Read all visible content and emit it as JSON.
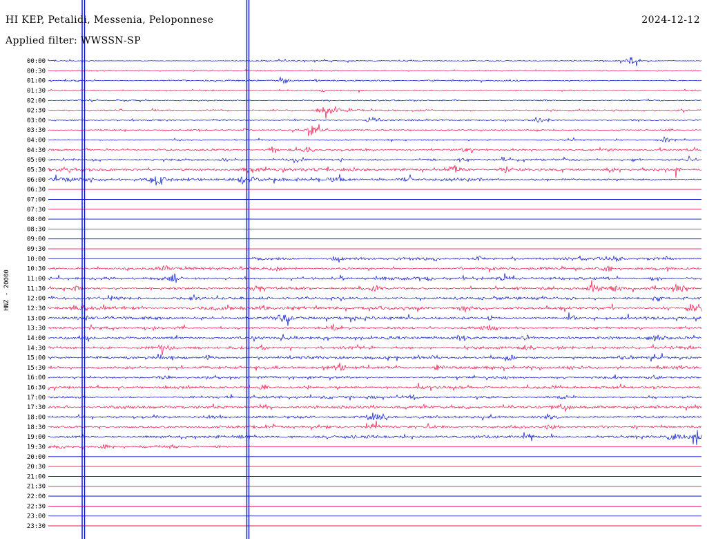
{
  "chart_data": {
    "type": "line",
    "title": "HI KEP, Petalidi, Messenia, Peloponnese",
    "subtitle": "Applied filter: WWSSN-SP",
    "date": "2024-12-12",
    "ylabel": "HNZ - 20000",
    "description": "24-hour helicorder seismogram, one row per 30 minutes, rows alternate blue/red; amplitudes in pixels, event positions as fraction of row width",
    "colors": {
      "blue": "#0011cc",
      "red": "#ee1144",
      "text": "#000000",
      "background": "#ffffff"
    },
    "vertical_event_lines_x": [
      119,
      122.5,
      357.5,
      360.5
    ],
    "rows": [
      {
        "t": "00:00",
        "c": "blue",
        "seg": [
          [
            0,
            1,
            0.9
          ]
        ],
        "ev": [
          [
            0.893,
            5,
            7
          ],
          [
            0.55,
            1.5,
            4
          ]
        ]
      },
      {
        "t": "00:30",
        "c": "red",
        "seg": [
          [
            0,
            1,
            0.85
          ]
        ],
        "ev": [
          [
            0.62,
            1.3,
            3
          ]
        ]
      },
      {
        "t": "01:00",
        "c": "blue",
        "seg": [
          [
            0,
            1,
            0.9
          ]
        ],
        "ev": [
          [
            0.363,
            5.5,
            5
          ],
          [
            0.41,
            2,
            4
          ]
        ]
      },
      {
        "t": "01:30",
        "c": "red",
        "seg": [
          [
            0,
            1,
            0.85
          ]
        ],
        "ev": [
          [
            0.42,
            1.5,
            3
          ]
        ]
      },
      {
        "t": "02:00",
        "c": "blue",
        "seg": [
          [
            0,
            1,
            0.9
          ]
        ],
        "ev": [
          [
            0.76,
            1.3,
            3
          ]
        ]
      },
      {
        "t": "02:30",
        "c": "red",
        "seg": [
          [
            0,
            1,
            1.0
          ]
        ],
        "ev": [
          [
            0.428,
            8,
            9
          ],
          [
            0.462,
            2.5,
            5
          ]
        ]
      },
      {
        "t": "03:00",
        "c": "blue",
        "seg": [
          [
            0,
            1,
            0.95
          ]
        ],
        "ev": [
          [
            0.497,
            6,
            6
          ],
          [
            0.748,
            4,
            5
          ]
        ]
      },
      {
        "t": "03:30",
        "c": "red",
        "seg": [
          [
            0,
            1,
            1.0
          ]
        ],
        "ev": [
          [
            0.407,
            6.5,
            7
          ],
          [
            0.95,
            3,
            5
          ],
          [
            0.3,
            1.5,
            4
          ]
        ]
      },
      {
        "t": "04:00",
        "c": "blue",
        "seg": [
          [
            0,
            1,
            0.95
          ]
        ],
        "ev": [
          [
            0.946,
            5.5,
            7
          ],
          [
            0.2,
            1.5,
            4
          ]
        ]
      },
      {
        "t": "04:30",
        "c": "red",
        "seg": [
          [
            0,
            1,
            1.3
          ]
        ],
        "ev": [
          [
            0.344,
            5,
            6
          ],
          [
            0.4,
            5.5,
            6
          ],
          [
            0.64,
            3.5,
            6
          ],
          [
            0.06,
            2,
            4
          ],
          [
            0.86,
            2,
            4
          ]
        ]
      },
      {
        "t": "05:00",
        "c": "blue",
        "seg": [
          [
            0,
            1,
            1.5
          ]
        ],
        "ev": [
          [
            0.27,
            2.5,
            5
          ],
          [
            0.45,
            2.5,
            5
          ],
          [
            0.63,
            3,
            5
          ],
          [
            0.9,
            2.5,
            5
          ],
          [
            0.98,
            3,
            4
          ]
        ]
      },
      {
        "t": "05:30",
        "c": "red",
        "seg": [
          [
            0,
            1,
            2.2
          ]
        ],
        "ev": [
          [
            0.03,
            3,
            6
          ],
          [
            0.31,
            4,
            8
          ],
          [
            0.62,
            5,
            8
          ],
          [
            0.7,
            4,
            6
          ],
          [
            0.86,
            3.5,
            6
          ],
          [
            0.96,
            4,
            6
          ]
        ]
      },
      {
        "t": "06:00",
        "c": "blue",
        "seg": [
          [
            0,
            0.67,
            2.8
          ],
          [
            0.67,
            1,
            1.2
          ]
        ],
        "ev": [
          [
            0.169,
            7,
            10
          ],
          [
            0.3,
            4,
            8
          ],
          [
            0.44,
            4,
            6
          ],
          [
            0.55,
            3.5,
            6
          ]
        ]
      },
      {
        "t": "06:30",
        "c": "red",
        "seg": [],
        "ev": []
      },
      {
        "t": "07:00",
        "c": "blue",
        "seg": [],
        "ev": []
      },
      {
        "t": "07:30",
        "c": "red",
        "seg": [],
        "ev": []
      },
      {
        "t": "08:00",
        "c": "blue",
        "seg": [],
        "ev": []
      },
      {
        "t": "08:30",
        "c": "red",
        "seg": [],
        "ev": []
      },
      {
        "t": "09:00",
        "c": "blue",
        "seg": [],
        "ev": []
      },
      {
        "t": "09:30",
        "c": "red",
        "seg": [],
        "ev": []
      },
      {
        "t": "10:00",
        "c": "blue",
        "seg": [
          [
            0.312,
            1,
            1.9
          ]
        ],
        "ev": [
          [
            0.44,
            3,
            5
          ],
          [
            0.59,
            3.5,
            5
          ],
          [
            0.66,
            3,
            4
          ],
          [
            0.87,
            4,
            6
          ],
          [
            0.95,
            2.5,
            4
          ]
        ]
      },
      {
        "t": "10:30",
        "c": "red",
        "seg": [
          [
            0,
            1,
            1.9
          ]
        ],
        "ev": [
          [
            0.177,
            4.5,
            6
          ],
          [
            0.35,
            2.5,
            4
          ],
          [
            0.63,
            2.5,
            4
          ],
          [
            0.856,
            4.5,
            6
          ],
          [
            0.95,
            2.5,
            4
          ]
        ]
      },
      {
        "t": "11:00",
        "c": "blue",
        "seg": [
          [
            0,
            1,
            1.9
          ]
        ],
        "ev": [
          [
            0.185,
            5,
            6
          ],
          [
            0.45,
            2.5,
            4
          ],
          [
            0.58,
            3,
            5
          ],
          [
            0.7,
            3.5,
            5
          ],
          [
            0.93,
            3,
            5
          ]
        ]
      },
      {
        "t": "11:30",
        "c": "red",
        "seg": [
          [
            0,
            1,
            2.0
          ]
        ],
        "ev": [
          [
            0.04,
            2.5,
            4
          ],
          [
            0.32,
            5,
            6
          ],
          [
            0.5,
            3,
            5
          ],
          [
            0.72,
            3,
            5
          ],
          [
            0.835,
            5,
            7
          ],
          [
            0.868,
            4,
            5
          ],
          [
            0.968,
            4.5,
            5
          ]
        ]
      },
      {
        "t": "12:00",
        "c": "blue",
        "seg": [
          [
            0,
            1,
            1.9
          ]
        ],
        "ev": [
          [
            0.1,
            2.5,
            4
          ],
          [
            0.33,
            2.5,
            4
          ],
          [
            0.62,
            2.5,
            4
          ],
          [
            0.93,
            4.5,
            6
          ]
        ]
      },
      {
        "t": "12:30",
        "c": "red",
        "seg": [
          [
            0,
            1,
            2.4
          ]
        ],
        "ev": [
          [
            0.045,
            6,
            8
          ],
          [
            0.33,
            3.5,
            5
          ],
          [
            0.64,
            4,
            6
          ],
          [
            0.86,
            3,
            5
          ],
          [
            0.985,
            6,
            6
          ]
        ]
      },
      {
        "t": "13:00",
        "c": "blue",
        "seg": [
          [
            0,
            1,
            2.0
          ]
        ],
        "ev": [
          [
            0.055,
            3,
            5
          ],
          [
            0.36,
            5.5,
            7
          ],
          [
            0.68,
            3.5,
            5
          ],
          [
            0.803,
            4.5,
            6
          ]
        ]
      },
      {
        "t": "13:30",
        "c": "red",
        "seg": [
          [
            0,
            1,
            2.0
          ]
        ],
        "ev": [
          [
            0.437,
            5,
            6
          ],
          [
            0.677,
            4.5,
            6
          ],
          [
            0.2,
            2.5,
            4
          ],
          [
            0.9,
            2.5,
            4
          ]
        ]
      },
      {
        "t": "14:00",
        "c": "blue",
        "seg": [
          [
            0,
            1,
            2.0
          ]
        ],
        "ev": [
          [
            0.055,
            4,
            6
          ],
          [
            0.634,
            4.5,
            6
          ],
          [
            0.735,
            3.5,
            5
          ],
          [
            0.93,
            5,
            7
          ]
        ]
      },
      {
        "t": "14:30",
        "c": "red",
        "seg": [
          [
            0,
            1,
            2.0
          ]
        ],
        "ev": [
          [
            0.177,
            4.5,
            6
          ],
          [
            0.33,
            3.5,
            5
          ],
          [
            0.735,
            4.5,
            6
          ],
          [
            0.55,
            2.5,
            4
          ]
        ]
      },
      {
        "t": "15:00",
        "c": "blue",
        "seg": [
          [
            0,
            1,
            1.9
          ]
        ],
        "ev": [
          [
            0.167,
            4.5,
            6
          ],
          [
            0.245,
            3.5,
            5
          ],
          [
            0.708,
            4,
            6
          ],
          [
            0.88,
            2.5,
            4
          ]
        ]
      },
      {
        "t": "15:30",
        "c": "red",
        "seg": [
          [
            0,
            1,
            1.9
          ]
        ],
        "ev": [
          [
            0.447,
            5.5,
            7
          ],
          [
            0.597,
            4,
            5
          ],
          [
            0.12,
            2.5,
            4
          ],
          [
            0.8,
            2.5,
            4
          ]
        ]
      },
      {
        "t": "16:00",
        "c": "blue",
        "seg": [
          [
            0,
            1,
            1.7
          ]
        ],
        "ev": [
          [
            0.18,
            3,
            5
          ],
          [
            0.4,
            2.5,
            4
          ],
          [
            0.93,
            4,
            6
          ],
          [
            0.7,
            2.5,
            4
          ]
        ]
      },
      {
        "t": "16:30",
        "c": "red",
        "seg": [
          [
            0,
            1,
            1.7
          ]
        ],
        "ev": [
          [
            0.33,
            4,
            5
          ],
          [
            0.57,
            2.5,
            4
          ],
          [
            0.93,
            3,
            5
          ]
        ]
      },
      {
        "t": "17:00",
        "c": "blue",
        "seg": [
          [
            0,
            1,
            1.7
          ]
        ],
        "ev": [
          [
            0.497,
            4,
            5
          ],
          [
            0.56,
            3.5,
            5
          ],
          [
            0.787,
            3.5,
            5
          ],
          [
            0.92,
            2.5,
            4
          ]
        ]
      },
      {
        "t": "17:30",
        "c": "red",
        "seg": [
          [
            0,
            1,
            1.9
          ]
        ],
        "ev": [
          [
            0.335,
            3,
            5
          ],
          [
            0.5,
            3,
            5
          ],
          [
            0.787,
            5.5,
            7
          ],
          [
            0.64,
            2.5,
            4
          ]
        ]
      },
      {
        "t": "18:00",
        "c": "blue",
        "seg": [
          [
            0,
            1,
            1.9
          ]
        ],
        "ev": [
          [
            0.497,
            6,
            7
          ],
          [
            0.25,
            2.5,
            4
          ],
          [
            0.77,
            2.5,
            4
          ]
        ]
      },
      {
        "t": "18:30",
        "c": "red",
        "seg": [
          [
            0,
            1,
            1.9
          ]
        ],
        "ev": [
          [
            0.497,
            3.5,
            5
          ],
          [
            0.772,
            5,
            7
          ],
          [
            0.9,
            2.5,
            4
          ]
        ]
      },
      {
        "t": "19:00",
        "c": "blue",
        "seg": [
          [
            0,
            1,
            1.9
          ]
        ],
        "ev": [
          [
            0.735,
            4,
            6
          ],
          [
            0.957,
            6.5,
            8
          ],
          [
            0.995,
            5,
            5
          ],
          [
            0.3,
            2.5,
            4
          ]
        ]
      },
      {
        "t": "19:30",
        "c": "red",
        "seg": [
          [
            0,
            0.315,
            1.7
          ]
        ],
        "ev": [
          [
            0.02,
            2.5,
            4
          ],
          [
            0.085,
            3,
            5
          ],
          [
            0.19,
            3.5,
            5
          ],
          [
            0.26,
            2.5,
            4
          ]
        ]
      },
      {
        "t": "20:00",
        "c": "blue",
        "seg": [],
        "ev": []
      },
      {
        "t": "20:30",
        "c": "red",
        "seg": [],
        "ev": []
      },
      {
        "t": "21:00",
        "c": "blue",
        "seg": [],
        "ev": []
      },
      {
        "t": "21:30",
        "c": "red",
        "seg": [],
        "ev": []
      },
      {
        "t": "22:00",
        "c": "blue",
        "seg": [],
        "ev": []
      },
      {
        "t": "22:30",
        "c": "red",
        "seg": [],
        "ev": []
      },
      {
        "t": "23:00",
        "c": "blue",
        "seg": [],
        "ev": []
      },
      {
        "t": "23:30",
        "c": "red",
        "seg": [],
        "ev": []
      }
    ]
  }
}
